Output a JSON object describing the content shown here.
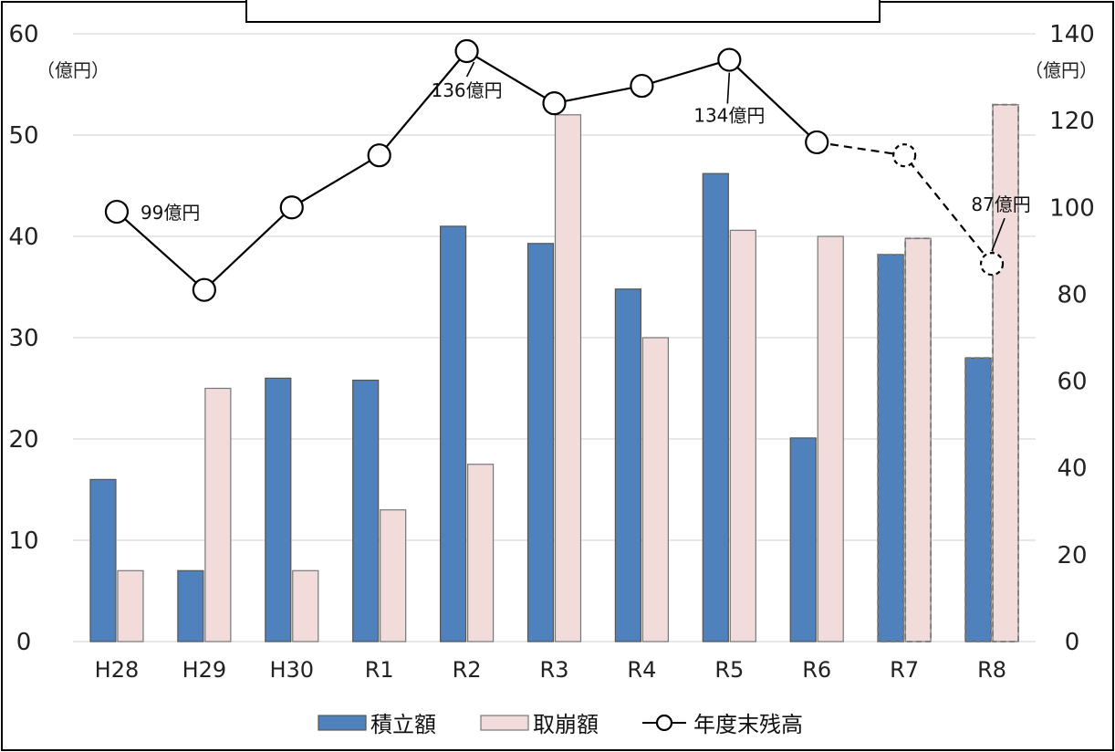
{
  "chart_data": {
    "type": "bar",
    "title": "",
    "categories": [
      "H28",
      "H29",
      "H30",
      "R1",
      "R2",
      "R3",
      "R4",
      "R5",
      "R6",
      "R7",
      "R8"
    ],
    "projected_from_index": 9,
    "series": [
      {
        "name": "積立額",
        "type": "bar",
        "axis": "left",
        "color": "#4f81bd",
        "values": [
          16,
          7,
          26,
          25.8,
          41,
          39.3,
          34.8,
          46.2,
          20.1,
          38.2,
          28
        ]
      },
      {
        "name": "取崩額",
        "type": "bar",
        "axis": "left",
        "color": "#f2dcdb",
        "values": [
          7,
          25,
          7,
          13,
          17.5,
          52,
          30,
          40.6,
          40,
          39.8,
          53
        ]
      },
      {
        "name": "年度末残高",
        "type": "line",
        "axis": "right",
        "color": "#000000",
        "values": [
          99,
          81,
          100,
          112,
          136,
          124,
          128,
          134,
          115,
          112,
          87
        ]
      }
    ],
    "left_axis": {
      "unit": "（億円）",
      "min": 0,
      "max": 60,
      "ticks": [
        "0",
        "10",
        "20",
        "30",
        "40",
        "50",
        "60"
      ]
    },
    "right_axis": {
      "unit": "（億円）",
      "min": 0,
      "max": 140,
      "ticks": [
        "0",
        "20",
        "40",
        "60",
        "80",
        "100",
        "120",
        "140"
      ]
    },
    "grid": true,
    "legend_position": "bottom",
    "annotations": [
      {
        "index": 0,
        "text": "99億円"
      },
      {
        "index": 4,
        "text": "136億円"
      },
      {
        "index": 7,
        "text": "134億円"
      },
      {
        "index": 10,
        "text": "87億円"
      }
    ]
  }
}
